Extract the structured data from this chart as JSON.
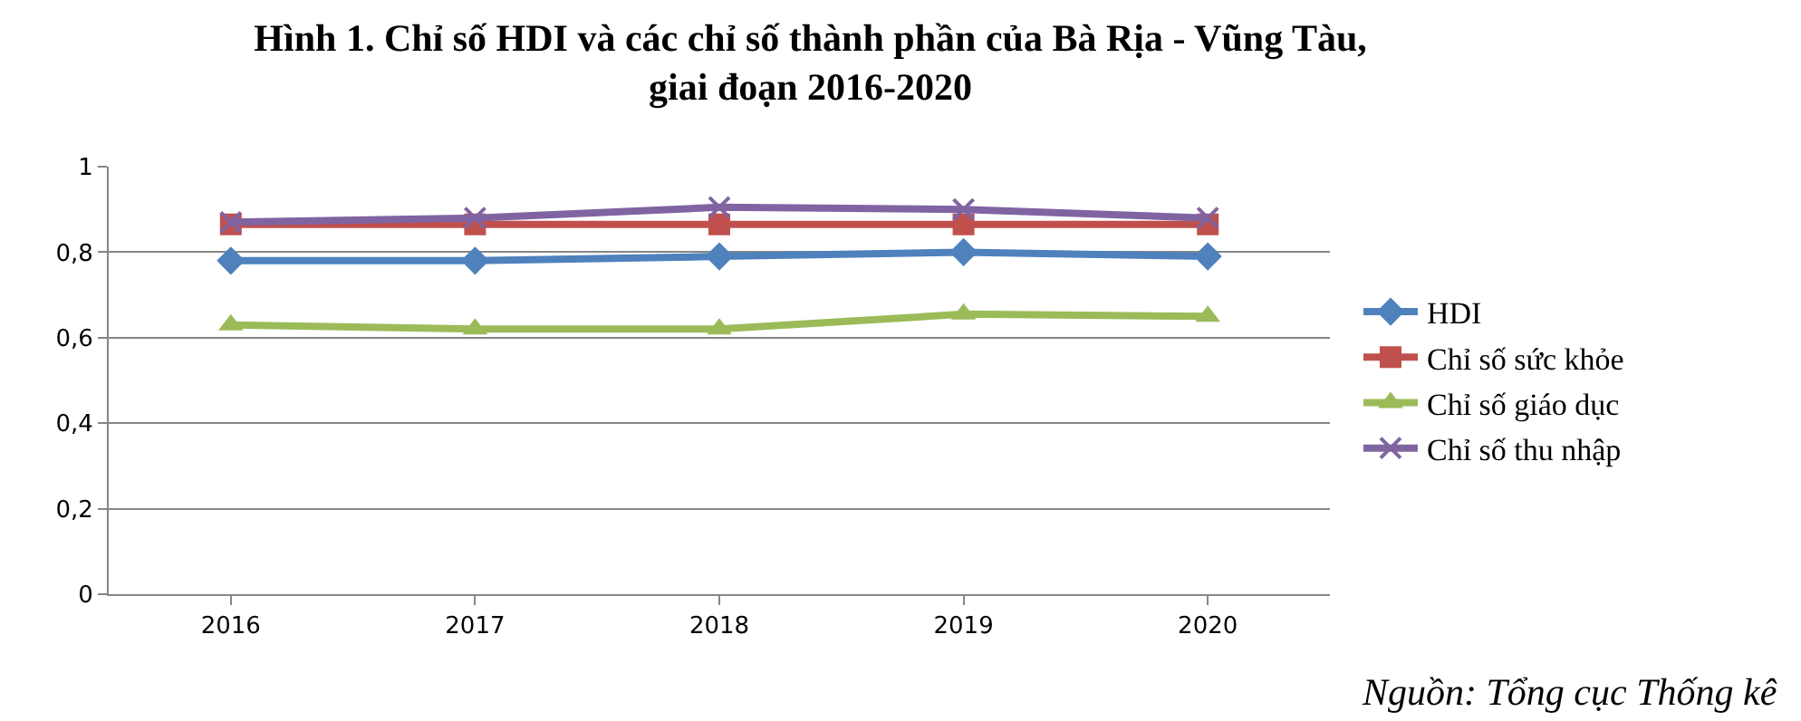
{
  "chart_data": {
    "type": "line",
    "title": "Hình 1. Chỉ số HDI và các chỉ số thành phần của Bà Rịa - Vũng Tàu,\ngiai đoạn 2016-2020",
    "categories": [
      "2016",
      "2017",
      "2018",
      "2019",
      "2020"
    ],
    "series": [
      {
        "name": "HDI",
        "color": "#4f81bd",
        "marker": "diamond",
        "values": [
          0.78,
          0.78,
          0.79,
          0.8,
          0.79
        ]
      },
      {
        "name": "Chỉ số sức khỏe",
        "color": "#c0504d",
        "marker": "square",
        "values": [
          0.865,
          0.865,
          0.865,
          0.865,
          0.865
        ]
      },
      {
        "name": "Chỉ số giáo dục",
        "color": "#9bbb59",
        "marker": "triangle",
        "values": [
          0.63,
          0.62,
          0.62,
          0.655,
          0.65
        ]
      },
      {
        "name": "Chỉ số thu nhập",
        "color": "#8064a2",
        "marker": "cross",
        "values": [
          0.87,
          0.88,
          0.905,
          0.9,
          0.88
        ]
      }
    ],
    "ylim": [
      0,
      1
    ],
    "yticks": [
      {
        "value": 0,
        "label": "0"
      },
      {
        "value": 0.2,
        "label": "0,2"
      },
      {
        "value": 0.4,
        "label": "0,4"
      },
      {
        "value": 0.6,
        "label": "0,6"
      },
      {
        "value": 0.8,
        "label": "0,8"
      },
      {
        "value": 1,
        "label": "1"
      }
    ],
    "grid": "y",
    "legend": "right",
    "annotations": [
      "Nguồn: Tổng cục Thống kê"
    ]
  }
}
